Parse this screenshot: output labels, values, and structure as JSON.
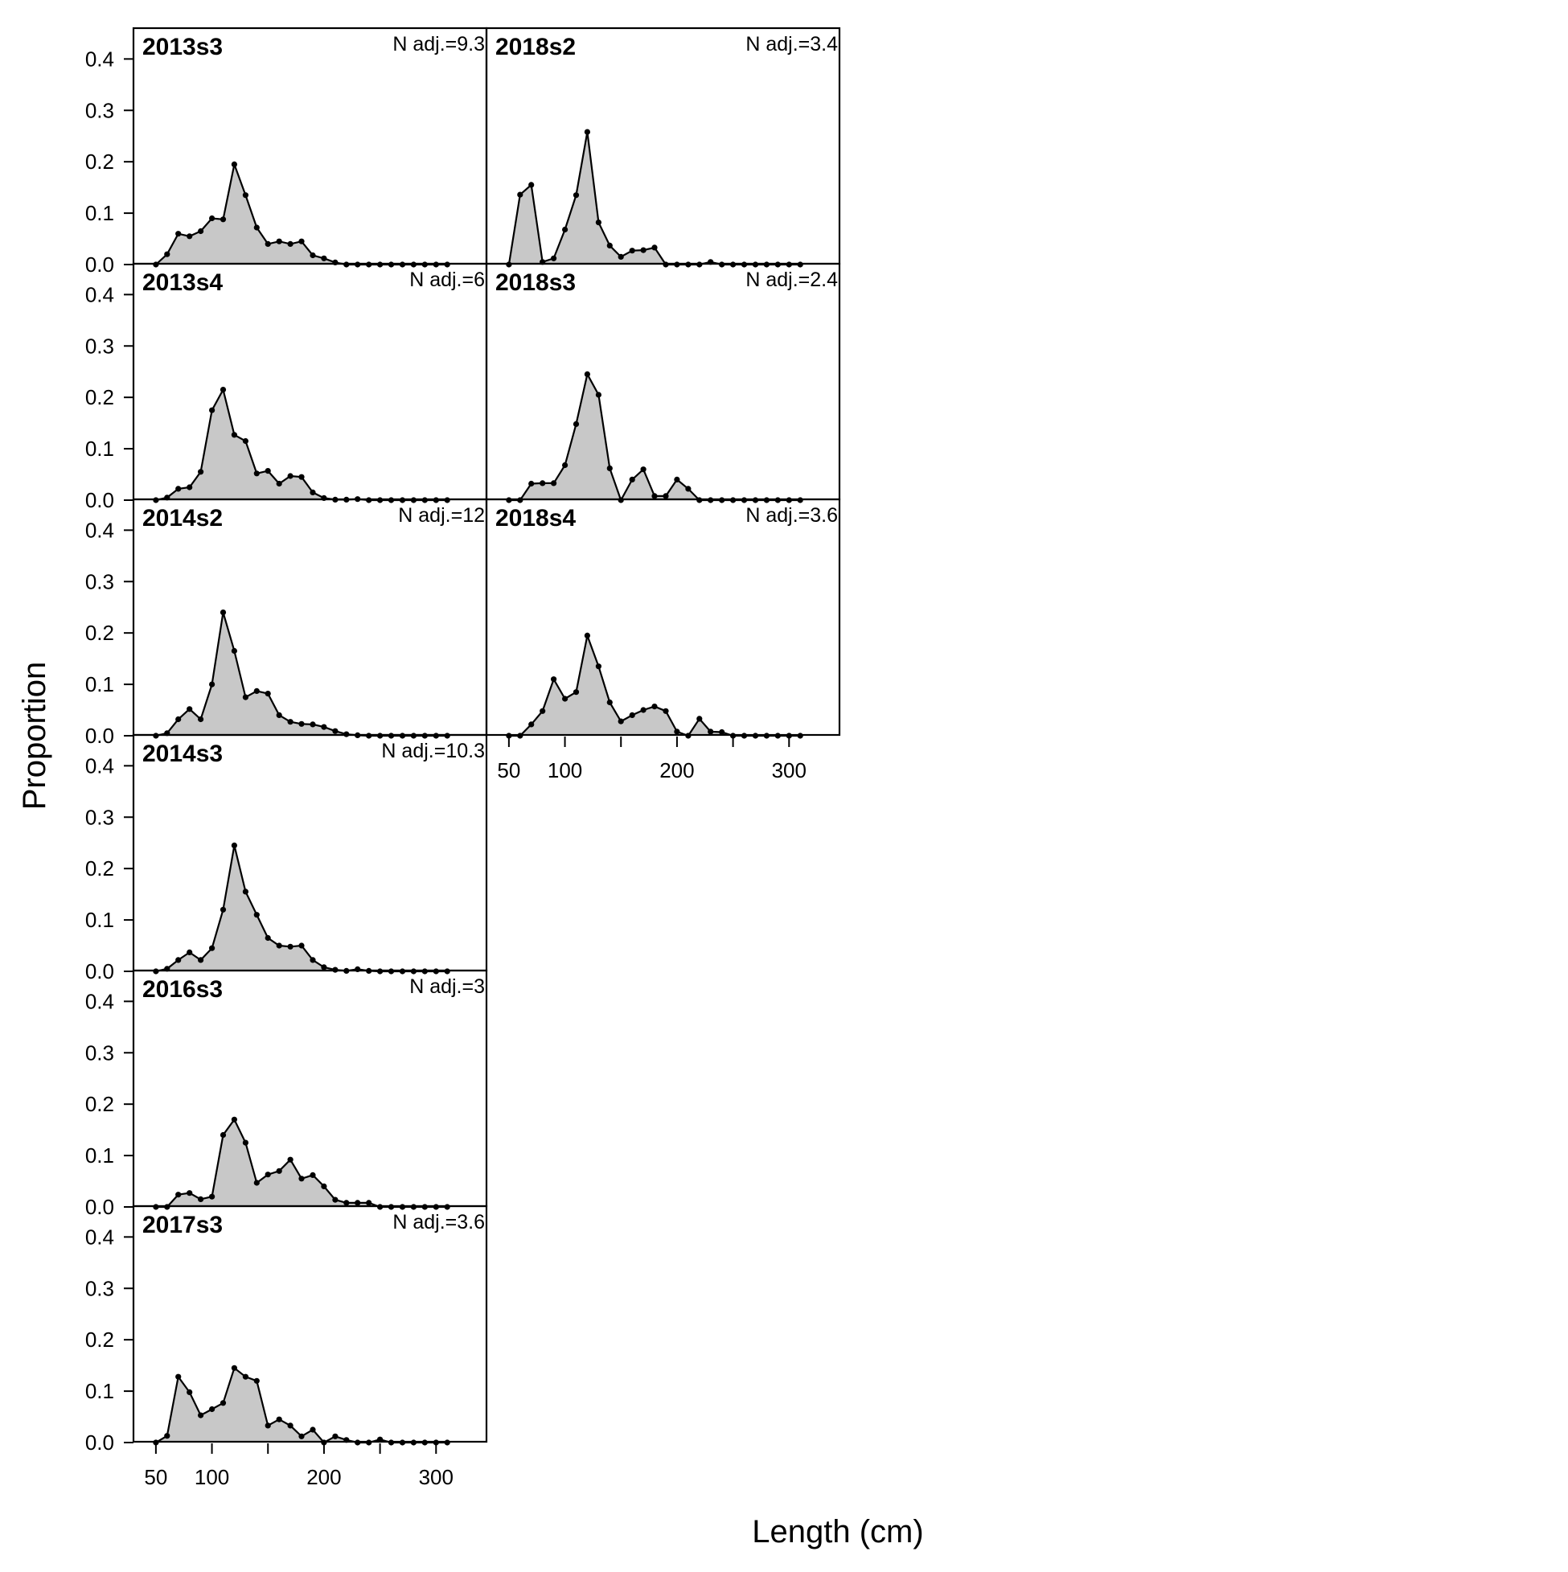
{
  "figure": {
    "xlabel": "Length (cm)",
    "ylabel": "Proportion"
  },
  "chart_data": {
    "type": "area",
    "x": [
      50,
      60,
      70,
      80,
      90,
      100,
      110,
      120,
      130,
      140,
      150,
      160,
      170,
      180,
      190,
      200,
      210,
      220,
      230,
      240,
      250,
      260,
      270,
      280,
      290,
      300,
      310
    ],
    "xlim": [
      30,
      345
    ],
    "ylim": [
      0,
      0.46
    ],
    "x_ticks": [
      50,
      100,
      150,
      200,
      250,
      300
    ],
    "x_tick_labels": [
      "50",
      "100",
      "",
      "200",
      "",
      "300"
    ],
    "y_ticks": [
      0.0,
      0.1,
      0.2,
      0.3,
      0.4
    ],
    "y_tick_labels": [
      "0.0",
      "0.1",
      "0.2",
      "0.3",
      "0.4"
    ],
    "fill_color": "#c8c8c8",
    "line_color": "#000000",
    "grid": false,
    "panels": [
      {
        "label": "2013s3",
        "n_adj": "N adj.=9.3",
        "values": [
          0.0,
          0.02,
          0.06,
          0.055,
          0.065,
          0.09,
          0.088,
          0.195,
          0.135,
          0.072,
          0.04,
          0.045,
          0.04,
          0.045,
          0.018,
          0.012,
          0.004,
          0.0,
          0.0,
          0.0,
          0.0,
          0.0,
          0.0,
          0.0,
          0.0,
          0.0,
          0.0
        ]
      },
      {
        "label": "2013s4",
        "n_adj": "N adj.=6",
        "values": [
          0.0,
          0.005,
          0.022,
          0.025,
          0.055,
          0.175,
          0.215,
          0.127,
          0.115,
          0.052,
          0.057,
          0.032,
          0.047,
          0.045,
          0.015,
          0.004,
          0.001,
          0.001,
          0.002,
          0.0,
          0.0,
          0.0,
          0.0,
          0.0,
          0.0,
          0.0,
          0.0
        ]
      },
      {
        "label": "2014s2",
        "n_adj": "N adj.=12",
        "values": [
          0.0,
          0.005,
          0.032,
          0.052,
          0.032,
          0.1,
          0.24,
          0.165,
          0.075,
          0.087,
          0.082,
          0.04,
          0.027,
          0.023,
          0.022,
          0.017,
          0.009,
          0.003,
          0.001,
          0.0,
          0.0,
          0.0,
          0.0,
          0.0,
          0.0,
          0.0,
          0.0
        ]
      },
      {
        "label": "2014s3",
        "n_adj": "N adj.=10.3",
        "values": [
          0.0,
          0.005,
          0.022,
          0.037,
          0.022,
          0.045,
          0.12,
          0.245,
          0.155,
          0.11,
          0.065,
          0.05,
          0.048,
          0.05,
          0.022,
          0.008,
          0.003,
          0.001,
          0.004,
          0.001,
          0.0,
          0.0,
          0.0,
          0.0,
          0.0,
          0.0,
          0.0
        ]
      },
      {
        "label": "2016s3",
        "n_adj": "N adj.=3",
        "values": [
          0.0,
          0.0,
          0.024,
          0.027,
          0.015,
          0.02,
          0.14,
          0.17,
          0.125,
          0.047,
          0.063,
          0.07,
          0.092,
          0.055,
          0.062,
          0.04,
          0.014,
          0.008,
          0.008,
          0.008,
          0.0,
          0.0,
          0.0,
          0.0,
          0.0,
          0.0,
          0.0
        ]
      },
      {
        "label": "2017s3",
        "n_adj": "N adj.=3.6",
        "values": [
          0.0,
          0.013,
          0.128,
          0.098,
          0.053,
          0.065,
          0.077,
          0.145,
          0.128,
          0.12,
          0.033,
          0.045,
          0.033,
          0.012,
          0.025,
          0.0,
          0.012,
          0.005,
          0.0,
          0.0,
          0.006,
          0.0,
          0.0,
          0.0,
          0.0,
          0.0,
          0.0
        ]
      },
      {
        "label": "2018s2",
        "n_adj": "N adj.=3.4",
        "values": [
          0.0,
          0.136,
          0.155,
          0.005,
          0.012,
          0.068,
          0.135,
          0.258,
          0.082,
          0.037,
          0.015,
          0.027,
          0.028,
          0.033,
          0.0,
          0.0,
          0.0,
          0.0,
          0.005,
          0.0,
          0.0,
          0.0,
          0.0,
          0.0,
          0.0,
          0.0,
          0.0
        ]
      },
      {
        "label": "2018s3",
        "n_adj": "N adj.=2.4",
        "values": [
          0.0,
          0.0,
          0.032,
          0.033,
          0.033,
          0.068,
          0.148,
          0.245,
          0.205,
          0.062,
          0.0,
          0.04,
          0.06,
          0.008,
          0.008,
          0.04,
          0.022,
          0.0,
          0.0,
          0.0,
          0.0,
          0.0,
          0.0,
          0.0,
          0.0,
          0.0,
          0.0
        ]
      },
      {
        "label": "2018s4",
        "n_adj": "N adj.=3.6",
        "values": [
          0.0,
          0.0,
          0.022,
          0.048,
          0.11,
          0.072,
          0.085,
          0.195,
          0.135,
          0.065,
          0.028,
          0.04,
          0.05,
          0.057,
          0.048,
          0.008,
          0.0,
          0.033,
          0.008,
          0.007,
          0.0,
          0.0,
          0.0,
          0.0,
          0.0,
          0.0,
          0.0
        ]
      }
    ]
  }
}
